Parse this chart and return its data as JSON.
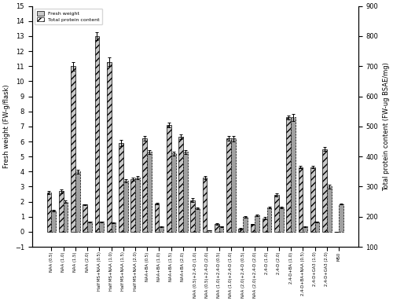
{
  "categories": [
    "NAA (0.5)",
    "NAA (1.0)",
    "NAA (1.5)",
    "NAA (2.0)",
    "Half MS+NAA (0.5)",
    "Half MS+NAA (1.0)",
    "Half MS+NAA (1.5)",
    "Half MS+NAA (2.0)",
    "NAA+BA (0.5)",
    "NAA+BA (1.0)",
    "NAA+BA (1.5)",
    "NAA+BA (2.0)",
    "NAA (0.5)+2,4-D (1.0)",
    "NAA (0.5)+2,4-D (2.0)",
    "NAA (1.0)+2,4-D (0.5)",
    "NAA (1.0)+2,4-D (1.0)",
    "NAA (2.0)+2,4-D (0.5)",
    "NAA (2.0)+2,4-D (2.0)",
    "2,4-D (1.0)",
    "2,4-D (2.0)",
    "2,4-D+BA (1.0)",
    "2,4-D+BA+NAA (0.5)",
    "2,4-D+GA3 (1.0)",
    "2,4-D+GA3 (2.0)",
    "MS0"
  ],
  "fresh_weight": [
    2.6,
    2.7,
    11.0,
    1.8,
    13.0,
    11.3,
    5.9,
    3.5,
    6.2,
    1.9,
    7.1,
    6.3,
    2.1,
    3.6,
    0.5,
    6.2,
    0.2,
    0.5,
    0.9,
    2.45,
    7.6,
    4.3,
    4.3,
    5.5,
    0.0
  ],
  "fresh_weight_err": [
    0.12,
    0.12,
    0.3,
    0.05,
    0.25,
    0.3,
    0.2,
    0.1,
    0.15,
    0.05,
    0.15,
    0.15,
    0.12,
    0.1,
    0.05,
    0.15,
    0.04,
    0.04,
    0.08,
    0.1,
    0.15,
    0.1,
    0.1,
    0.15,
    0.0
  ],
  "protein_left": [
    1.4,
    2.0,
    4.0,
    0.65,
    0.65,
    0.6,
    3.4,
    3.6,
    5.3,
    0.35,
    5.2,
    5.3,
    1.55,
    0.1,
    0.35,
    6.2,
    1.0,
    1.1,
    1.6,
    1.6,
    7.6,
    0.35,
    0.65,
    3.0,
    1.85
  ],
  "protein_left_err": [
    0.06,
    0.06,
    0.12,
    0.02,
    0.02,
    0.02,
    0.12,
    0.12,
    0.12,
    0.02,
    0.12,
    0.12,
    0.06,
    0.02,
    0.02,
    0.18,
    0.05,
    0.05,
    0.06,
    0.06,
    0.22,
    0.02,
    0.02,
    0.12,
    0.05
  ],
  "fw_color": "#c8c8c8",
  "fw_hatch": "////",
  "protein_color": "#a0a0a0",
  "ylim_left": [
    -1,
    15
  ],
  "ylim_right": [
    100,
    900
  ],
  "ylabel_left": "Fresh weight (FW-g/flask)",
  "ylabel_right": "Total protein content (FW-ug BSAE/mg)",
  "left_yticks": [
    -1,
    0,
    1,
    2,
    3,
    4,
    5,
    6,
    7,
    8,
    9,
    10,
    11,
    12,
    13,
    14,
    15
  ],
  "right_yticks": [
    100,
    200,
    300,
    400,
    500,
    600,
    700,
    800,
    900
  ],
  "legend_fw_label": "Fresh weight",
  "legend_protein_label": "Total protein content"
}
